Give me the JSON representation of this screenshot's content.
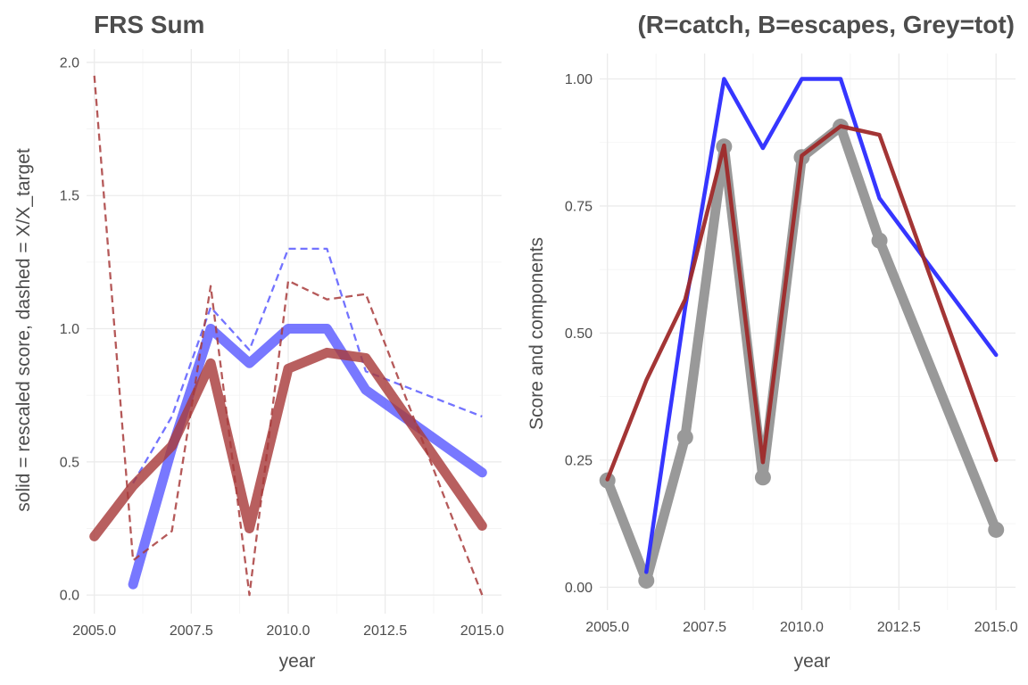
{
  "chart_data": [
    {
      "type": "line",
      "title": "FRS Sum",
      "xlabel": "year",
      "ylabel": "solid = rescaled score, dashed = X/X_target",
      "xlim": [
        2004.8,
        2015.5
      ],
      "ylim": [
        -0.07,
        2.05
      ],
      "xticks": [
        2005,
        2007.5,
        2010,
        2012.5,
        2015
      ],
      "xtick_labels": [
        "2005.0",
        "2007.5",
        "2010.0",
        "2012.5",
        "2015.0"
      ],
      "yticks": [
        0,
        0.5,
        1,
        1.5,
        2
      ],
      "ytick_labels": [
        "0.0",
        "0.5",
        "1.0",
        "1.5",
        "2.0"
      ],
      "grid": true,
      "legend": "none",
      "series": [
        {
          "style": "solid",
          "color": "#5a5aff",
          "x": [
            2006,
            2007,
            2008,
            2009,
            2010,
            2011,
            2012,
            2015
          ],
          "values": [
            0.04,
            0.55,
            1.0,
            0.87,
            1.0,
            1.0,
            0.77,
            0.46
          ]
        },
        {
          "style": "dashed",
          "color": "#5a5aff",
          "x": [
            2006,
            2007,
            2008,
            2009,
            2010,
            2011,
            2012,
            2015
          ],
          "values": [
            0.42,
            0.67,
            1.08,
            0.92,
            1.3,
            1.3,
            0.84,
            0.67
          ]
        },
        {
          "style": "solid",
          "color": "#a83c3c",
          "x": [
            2005,
            2006,
            2007,
            2008,
            2009,
            2010,
            2011,
            2012,
            2015
          ],
          "values": [
            0.22,
            0.41,
            0.56,
            0.87,
            0.25,
            0.85,
            0.91,
            0.89,
            0.26
          ]
        },
        {
          "style": "dashed",
          "color": "#a83c3c",
          "x": [
            2005,
            2006,
            2007,
            2008,
            2009,
            2010,
            2011,
            2012,
            2015
          ],
          "values": [
            1.95,
            0.13,
            0.24,
            1.16,
            0.0,
            1.18,
            1.11,
            1.13,
            0.0
          ]
        }
      ]
    },
    {
      "type": "line",
      "title": "(R=catch, B=escapes, Grey=tot)",
      "xlabel": "year",
      "ylabel": "Score and components",
      "xlim": [
        2004.8,
        2015.5
      ],
      "ylim": [
        -0.045,
        1.05
      ],
      "xticks": [
        2005,
        2007.5,
        2010,
        2012.5,
        2015
      ],
      "xtick_labels": [
        "2005.0",
        "2007.5",
        "2010.0",
        "2012.5",
        "2015.0"
      ],
      "yticks": [
        0,
        0.25,
        0.5,
        0.75,
        1.0
      ],
      "ytick_labels": [
        "0.00",
        "0.25",
        "0.50",
        "0.75",
        "1.00"
      ],
      "grid": true,
      "legend": "none",
      "series": [
        {
          "style": "grey-points",
          "color": "#999999",
          "x": [
            2005,
            2006,
            2007,
            2008,
            2009,
            2010,
            2011,
            2012,
            2015
          ],
          "values": [
            0.21,
            0.013,
            0.295,
            0.867,
            0.216,
            0.846,
            0.906,
            0.682,
            0.113
          ]
        },
        {
          "style": "solid",
          "color": "#2b2bff",
          "x": [
            2006,
            2007,
            2008,
            2009,
            2010,
            2011,
            2012,
            2015
          ],
          "values": [
            0.03,
            0.55,
            1.0,
            0.864,
            1.0,
            1.0,
            0.765,
            0.457
          ]
        },
        {
          "style": "solid",
          "color": "#9e2a2a",
          "x": [
            2005,
            2006,
            2007,
            2008,
            2009,
            2010,
            2011,
            2012,
            2015
          ],
          "values": [
            0.212,
            0.407,
            0.566,
            0.869,
            0.246,
            0.849,
            0.907,
            0.89,
            0.25
          ]
        }
      ]
    }
  ]
}
